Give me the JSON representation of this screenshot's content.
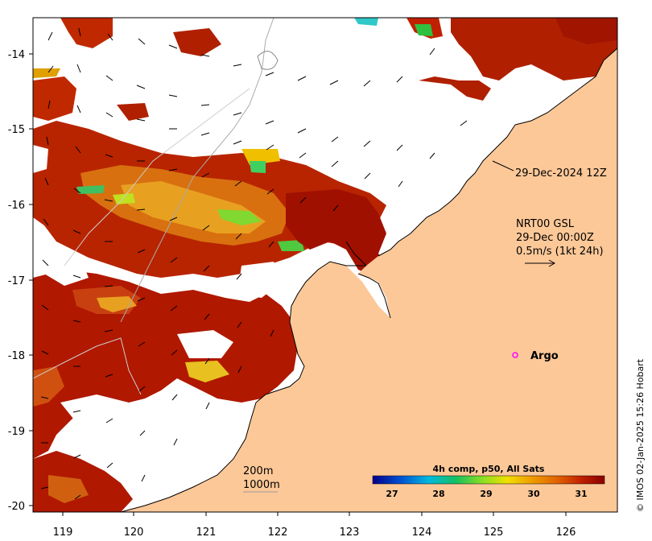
{
  "map": {
    "lon_labels": [
      "119",
      "120",
      "121",
      "122",
      "123",
      "124",
      "125",
      "126"
    ],
    "lat_labels": [
      "-14",
      "-15",
      "-16",
      "-17",
      "-18",
      "-19",
      "-20"
    ],
    "track_label": "29-Dec-2024 12Z",
    "current_info": {
      "line1": "NRT00 GSL",
      "line2": "29-Dec 00:00Z",
      "line3": "0.5m/s (1kt 24h)"
    },
    "argo_label": "Argo",
    "isobaths": {
      "shallow": "200m",
      "deep": "1000m"
    },
    "colorbar": {
      "title": "4h comp, p50, All Sats",
      "ticks": [
        "27",
        "28",
        "29",
        "30",
        "31"
      ],
      "colors": [
        "#00008b",
        "#0050d0",
        "#00b8e0",
        "#18c060",
        "#90e020",
        "#f0e000",
        "#f0a000",
        "#e06000",
        "#c02000",
        "#8b0000"
      ]
    },
    "credit": "© IMOS 02-Jan-2025 15:26 Hobart",
    "land_color": "#fdc898",
    "argo_color": "#ff00ff"
  }
}
